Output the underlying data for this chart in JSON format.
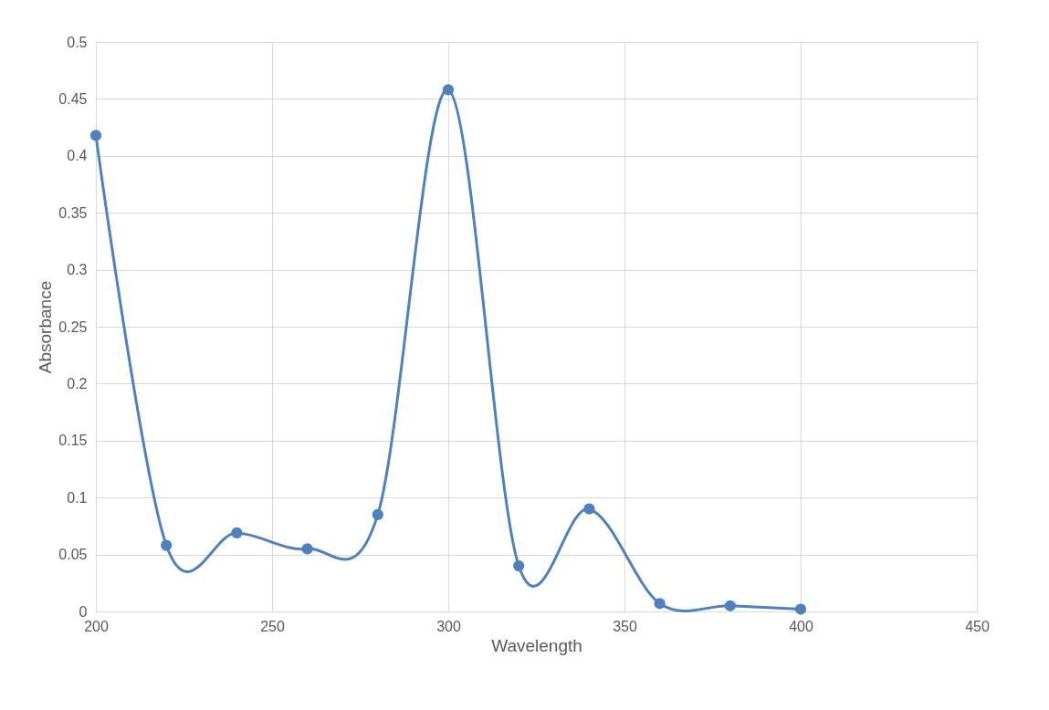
{
  "chart_data": {
    "type": "line",
    "xlabel": "Wavelength",
    "ylabel": "Absorbance",
    "x": [
      200,
      220,
      240,
      260,
      280,
      300,
      320,
      340,
      360,
      380,
      400
    ],
    "series": [
      {
        "color": "#4f81bd",
        "values": [
          0.418,
          0.058,
          0.069,
          0.055,
          0.085,
          0.458,
          0.04,
          0.09,
          0.007,
          0.005,
          0.002
        ]
      }
    ],
    "xlim": [
      200,
      450
    ],
    "xticks": [
      200,
      250,
      300,
      350,
      400,
      450
    ],
    "ylim": [
      0,
      0.5
    ],
    "yticks": [
      0,
      0.05,
      0.1,
      0.15,
      0.2,
      0.25,
      0.3,
      0.35,
      0.4,
      0.45,
      0.5
    ],
    "grid": true,
    "marker": "circle",
    "line_style": "solid"
  }
}
